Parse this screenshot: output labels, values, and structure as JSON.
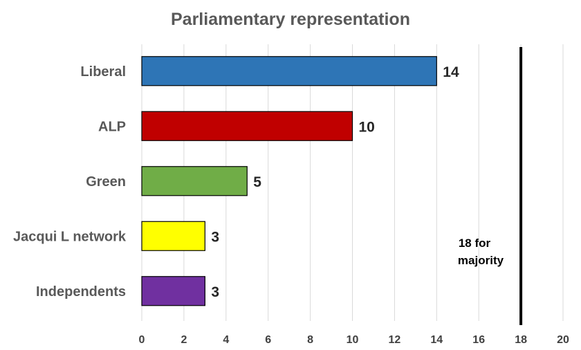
{
  "chart_data": {
    "type": "bar",
    "orientation": "horizontal",
    "title": "Parliamentary representation",
    "xlabel": "",
    "ylabel": "",
    "categories": [
      "Liberal",
      "ALP",
      "Green",
      "Jacqui L network",
      "Independents"
    ],
    "values": [
      14,
      10,
      5,
      3,
      3
    ],
    "colors": [
      "#2e75b6",
      "#c00000",
      "#70ad47",
      "#ffff00",
      "#7030a0"
    ],
    "xlim": [
      0,
      20
    ],
    "xticks": [
      "0",
      "2",
      "4",
      "6",
      "8",
      "10",
      "12",
      "14",
      "16",
      "18",
      "20"
    ],
    "grid": true,
    "legend": "none",
    "reference_line": {
      "value": 18,
      "color": "#000000",
      "label_lines": [
        "18 for",
        "majority"
      ]
    }
  }
}
